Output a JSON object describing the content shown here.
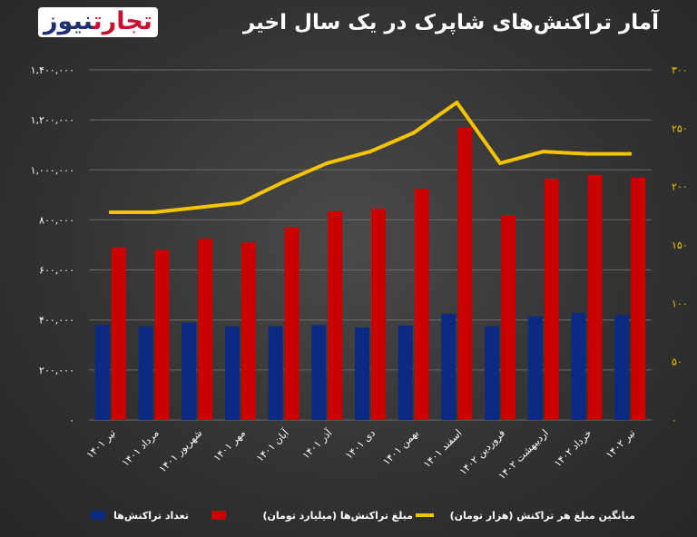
{
  "header": {
    "title": "آمار تراکنش‌های شاپرک در یک سال اخیر",
    "logo_part1": "تجارت",
    "logo_part2": "نیوز"
  },
  "colors": {
    "count": "#0d2a82",
    "amount": "#cc0000",
    "average": "#f5c400",
    "axis_text": "#ffffff",
    "right_axis_text": "#f5c400",
    "grid": "#6a6a6a"
  },
  "chart_data": {
    "type": "bar",
    "title": "آمار تراکنش‌های شاپرک در یک سال اخیر",
    "categories": [
      "تیر ۱۴۰۱",
      "مرداد ۱۴۰۱",
      "شهریور ۱۴۰۱",
      "مهر ۱۴۰۱",
      "آبان ۱۴۰۱",
      "آذر ۱۴۰۱",
      "دی ۱۴۰۱",
      "بهمن ۱۴۰۱",
      "اسفند ۱۴۰۱",
      "فروردین ۱۴۰۲",
      "اردیبهشت ۱۴۰۲",
      "خرداد ۱۴۰۲",
      "تیر ۱۴۰۲"
    ],
    "left_axis": {
      "ylim": [
        0,
        1400000
      ],
      "ticks": [
        0,
        200000,
        400000,
        600000,
        800000,
        1000000,
        1200000,
        1400000
      ],
      "tick_labels": [
        "۰",
        "۲۰۰,۰۰۰",
        "۴۰۰,۰۰۰",
        "۶۰۰,۰۰۰",
        "۸۰۰,۰۰۰",
        "۱,۰۰۰,۰۰۰",
        "۱,۲۰۰,۰۰۰",
        "۱,۴۰۰,۰۰۰"
      ]
    },
    "right_axis": {
      "ylim": [
        0,
        300
      ],
      "ticks": [
        0,
        50,
        100,
        150,
        200,
        250,
        300
      ],
      "tick_labels": [
        "۰",
        "۵۰",
        "۱۰۰",
        "۱۵۰",
        "۲۰۰",
        "۲۵۰",
        "۳۰۰"
      ]
    },
    "grid": true,
    "legend_position": "bottom",
    "series": [
      {
        "name": "تعداد تراکنش‌ها",
        "type": "bar",
        "axis": "left",
        "values": [
          380000,
          375000,
          390000,
          375000,
          375000,
          380000,
          370000,
          378000,
          425000,
          375000,
          415000,
          428000,
          420000
        ]
      },
      {
        "name": "مبلغ تراکنش‌ها (میلیارد تومان)",
        "type": "bar",
        "axis": "left",
        "values": [
          690000,
          680000,
          725000,
          710000,
          770000,
          835000,
          845000,
          925000,
          1170000,
          820000,
          965000,
          980000,
          970000
        ]
      },
      {
        "name": "میانگین مبلغ هر تراکنش (هزار تومان)",
        "type": "line",
        "axis": "right",
        "values": [
          178,
          178,
          182,
          186,
          204,
          220,
          230,
          246,
          272,
          220,
          230,
          228,
          228
        ]
      }
    ]
  }
}
